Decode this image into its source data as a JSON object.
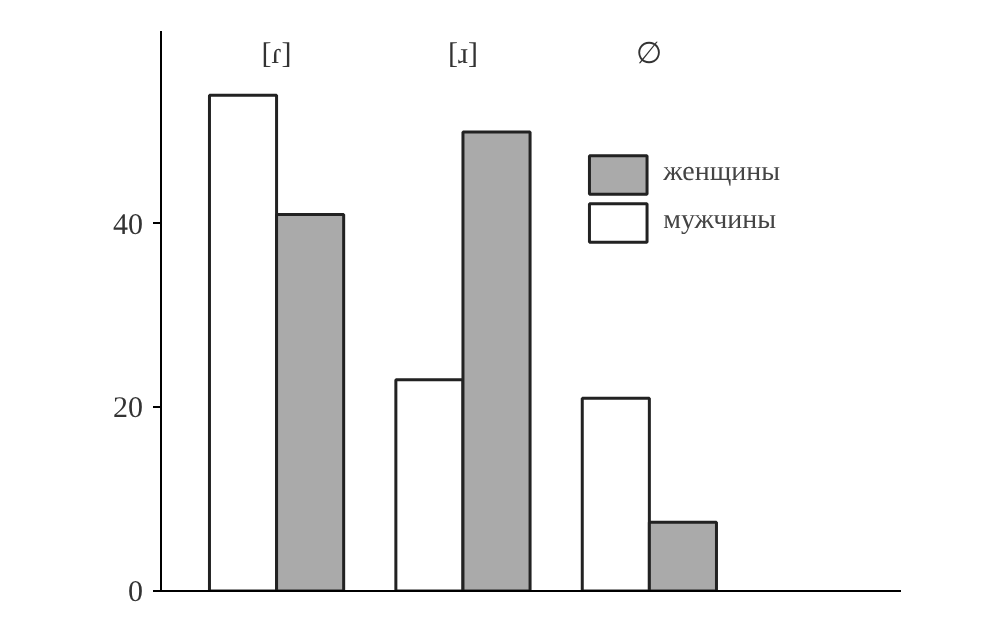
{
  "chart_data": {
    "type": "bar",
    "categories": [
      "[ɾ]",
      "[ɹ]",
      "∅"
    ],
    "series": [
      {
        "name": "мужчины",
        "color": "#ffffff",
        "values": [
          54,
          23,
          21
        ]
      },
      {
        "name": "женщины",
        "color": "#aaaaaa",
        "values": [
          41,
          50,
          7.5
        ]
      }
    ],
    "ylim": [
      0,
      61
    ],
    "yticks": [
      0,
      20,
      40
    ],
    "grid": false,
    "legend": "top right"
  }
}
